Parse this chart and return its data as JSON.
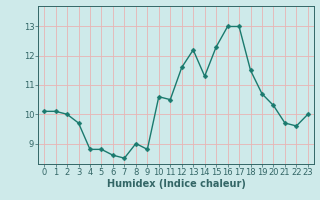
{
  "x": [
    0,
    1,
    2,
    3,
    4,
    5,
    6,
    7,
    8,
    9,
    10,
    11,
    12,
    13,
    14,
    15,
    16,
    17,
    18,
    19,
    20,
    21,
    22,
    23
  ],
  "y": [
    10.1,
    10.1,
    10.0,
    9.7,
    8.8,
    8.8,
    8.6,
    8.5,
    9.0,
    8.8,
    10.6,
    10.5,
    11.6,
    12.2,
    11.3,
    12.3,
    13.0,
    13.0,
    11.5,
    10.7,
    10.3,
    9.7,
    9.6,
    10.0
  ],
  "line_color": "#1a7a6e",
  "marker": "D",
  "marker_size": 2.5,
  "linewidth": 1.0,
  "bg_color": "#ceeaea",
  "grid_color": "#e8b4b4",
  "xlabel": "Humidex (Indice chaleur)",
  "xlabel_fontsize": 7,
  "tick_fontsize": 6,
  "yticks": [
    9,
    10,
    11,
    12,
    13
  ],
  "ylim": [
    8.3,
    13.7
  ],
  "xlim": [
    -0.5,
    23.5
  ],
  "axis_color": "#336666"
}
